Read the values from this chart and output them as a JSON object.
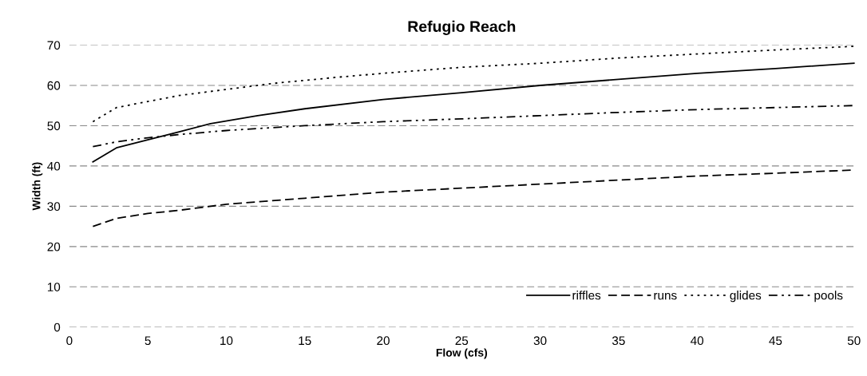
{
  "chart_data": {
    "type": "line",
    "title": "Refugio Reach",
    "xlabel": "Flow (cfs)",
    "ylabel": "Width (ft)",
    "xlim": [
      0,
      50
    ],
    "xticks": [
      0,
      5,
      10,
      15,
      20,
      25,
      30,
      35,
      40,
      45,
      50
    ],
    "ylim": [
      0,
      70
    ],
    "yticks": [
      0,
      10,
      20,
      30,
      40,
      50,
      60,
      70
    ],
    "grid": "y",
    "legend": "bottom right",
    "marker": "none",
    "series": [
      {
        "name": "riffles",
        "color": "#000000",
        "line_style": "solid",
        "x": [
          1.5,
          3,
          5,
          7,
          9,
          12,
          15,
          20,
          25,
          30,
          35,
          40,
          45,
          50
        ],
        "values": [
          41,
          44.5,
          46.5,
          48.5,
          50.5,
          52.5,
          54.2,
          56.5,
          58.2,
          60,
          61.5,
          63,
          64.2,
          65.5
        ]
      },
      {
        "name": "runs",
        "color": "#000000",
        "line_style": "dashed",
        "x": [
          1.5,
          3,
          5,
          7,
          10,
          15,
          20,
          25,
          30,
          35,
          40,
          45,
          50
        ],
        "values": [
          25,
          27,
          28.2,
          29,
          30.5,
          32,
          33.5,
          34.5,
          35.5,
          36.5,
          37.5,
          38.2,
          39
        ]
      },
      {
        "name": "glides",
        "color": "#000000",
        "line_style": "dotted",
        "x": [
          1.5,
          3,
          5,
          7,
          10,
          13,
          17,
          20,
          25,
          30,
          35,
          40,
          45,
          50
        ],
        "values": [
          51,
          54.5,
          56,
          57.5,
          59,
          60.5,
          62,
          63,
          64.5,
          65.5,
          66.8,
          67.8,
          68.8,
          69.7
        ]
      },
      {
        "name": "pools",
        "color": "#000000",
        "line_style": "dashdot",
        "x": [
          1.5,
          3,
          5,
          7,
          10,
          15,
          20,
          25,
          30,
          35,
          40,
          45,
          50
        ],
        "values": [
          44.8,
          46,
          47,
          47.8,
          48.8,
          50,
          51,
          51.7,
          52.5,
          53.3,
          54,
          54.5,
          55
        ]
      }
    ]
  }
}
